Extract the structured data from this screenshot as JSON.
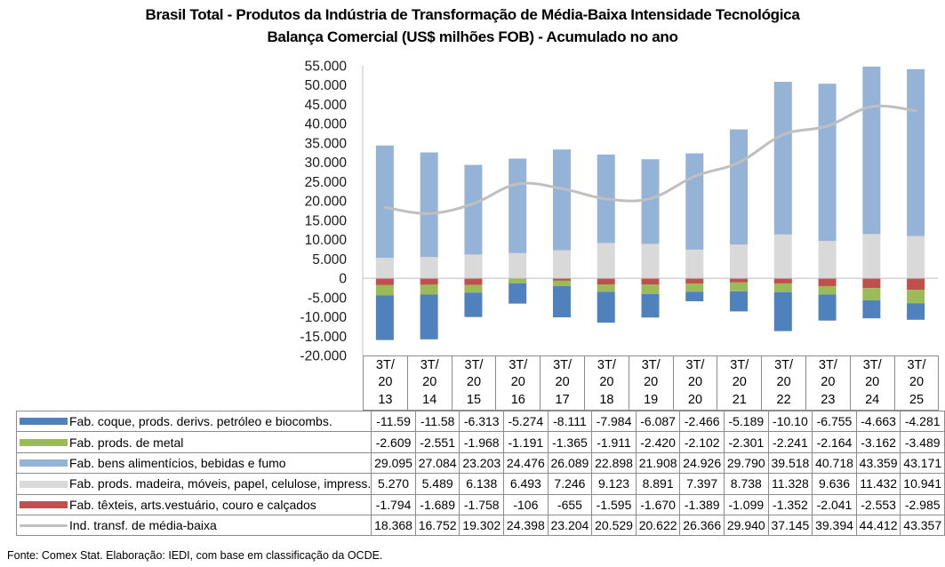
{
  "chart_data": {
    "type": "bar",
    "stacked": true,
    "title": "Brasil Total - Produtos da Indústria de Transformação  de Média-Baixa  Intensidade Tecnológica",
    "subtitle": "Balança Comercial (US$ milhões FOB) - Acumulado no ano",
    "xlabel": "",
    "ylabel": "",
    "ylim": [
      -20000,
      55000
    ],
    "yticks": [
      55000,
      50000,
      45000,
      40000,
      35000,
      30000,
      25000,
      20000,
      15000,
      10000,
      5000,
      0,
      -5000,
      -10000,
      -15000,
      -20000
    ],
    "ytick_labels": [
      "55.000",
      "50.000",
      "45.000",
      "40.000",
      "35.000",
      "30.000",
      "25.000",
      "20.000",
      "15.000",
      "10.000",
      "5.000",
      "0",
      "-5.000",
      "-10.000",
      "-15.000",
      "-20.000"
    ],
    "grid": false,
    "legend": "bottom (data table)",
    "categories": [
      [
        "3T/",
        "20",
        "13"
      ],
      [
        "3T/",
        "20",
        "14"
      ],
      [
        "3T/",
        "20",
        "15"
      ],
      [
        "3T/",
        "20",
        "16"
      ],
      [
        "3T/",
        "20",
        "17"
      ],
      [
        "3T/",
        "20",
        "18"
      ],
      [
        "3T/",
        "20",
        "19"
      ],
      [
        "3T/",
        "20",
        "20"
      ],
      [
        "3T/",
        "20",
        "21"
      ],
      [
        "3T/",
        "20",
        "22"
      ],
      [
        "3T/",
        "20",
        "23"
      ],
      [
        "3T/",
        "20",
        "24"
      ],
      [
        "3T/",
        "20",
        "25"
      ]
    ],
    "series": [
      {
        "name": "Fab. coque, prods. derivs. petróleo e biocombs.",
        "kind": "bar",
        "color": "#4f81bd",
        "values": [
          -11590,
          -11580,
          -6313,
          -5274,
          -8111,
          -7984,
          -6087,
          -2466,
          -5189,
          -10100,
          -6755,
          -4663,
          -4281
        ],
        "labels": [
          "-11.59",
          "-11.58",
          "-6.313",
          "-5.274",
          "-8.111",
          "-7.984",
          "-6.087",
          "-2.466",
          "-5.189",
          "-10.10",
          "-6.755",
          "-4.663",
          "-4.281"
        ]
      },
      {
        "name": "Fab. prods. de metal",
        "kind": "bar",
        "color": "#9bbb59",
        "values": [
          -2609,
          -2551,
          -1968,
          -1191,
          -1365,
          -1911,
          -2420,
          -2102,
          -2301,
          -2241,
          -2164,
          -3162,
          -3489
        ],
        "labels": [
          "-2.609",
          "-2.551",
          "-1.968",
          "-1.191",
          "-1.365",
          "-1.911",
          "-2.420",
          "-2.102",
          "-2.301",
          "-2.241",
          "-2.164",
          "-3.162",
          "-3.489"
        ]
      },
      {
        "name": "Fab. bens alimentícios, bebidas e fumo",
        "kind": "bar",
        "color": "#95b3d7",
        "values": [
          29095,
          27084,
          23203,
          24476,
          26089,
          22898,
          21908,
          24926,
          29790,
          39518,
          40718,
          43359,
          43171
        ],
        "labels": [
          "29.095",
          "27.084",
          "23.203",
          "24.476",
          "26.089",
          "22.898",
          "21.908",
          "24.926",
          "29.790",
          "39.518",
          "40.718",
          "43.359",
          "43.171"
        ]
      },
      {
        "name": "Fab. prods. madeira, móveis, papel, celulose, impress.",
        "kind": "bar",
        "color": "#d9d9d9",
        "values": [
          5270,
          5489,
          6138,
          6493,
          7246,
          9123,
          8891,
          7397,
          8738,
          11328,
          9636,
          11432,
          10941
        ],
        "labels": [
          "5.270",
          "5.489",
          "6.138",
          "6.493",
          "7.246",
          "9.123",
          "8.891",
          "7.397",
          "8.738",
          "11.328",
          "9.636",
          "11.432",
          "10.941"
        ]
      },
      {
        "name": "Fab. têxteis, arts.vestuário, couro e calçados",
        "kind": "bar",
        "color": "#c0504d",
        "values": [
          -1794,
          -1689,
          -1758,
          -106,
          -655,
          -1595,
          -1670,
          -1389,
          -1099,
          -1352,
          -2041,
          -2553,
          -2985
        ],
        "labels": [
          "-1.794",
          "-1.689",
          "-1.758",
          "-106",
          "-655",
          "-1.595",
          "-1.670",
          "-1.389",
          "-1.099",
          "-1.352",
          "-2.041",
          "-2.553",
          "-2.985"
        ]
      },
      {
        "name": "Ind. transf. de média-baixa",
        "kind": "line",
        "color": "#bfbfbf",
        "values": [
          18368,
          16752,
          19302,
          24398,
          23204,
          20529,
          20622,
          26366,
          29940,
          37145,
          39394,
          44412,
          43357
        ],
        "labels": [
          "18.368",
          "16.752",
          "19.302",
          "24.398",
          "23.204",
          "20.529",
          "20.622",
          "26.366",
          "29.940",
          "37.145",
          "39.394",
          "44.412",
          "43.357"
        ]
      }
    ],
    "stack_order_positive": [
      3,
      2
    ],
    "stack_order_negative": [
      4,
      1,
      0
    ]
  },
  "source_note": "Fonte:  Comex Stat. Elaboração: IEDI, com base em classificação da OCDE."
}
